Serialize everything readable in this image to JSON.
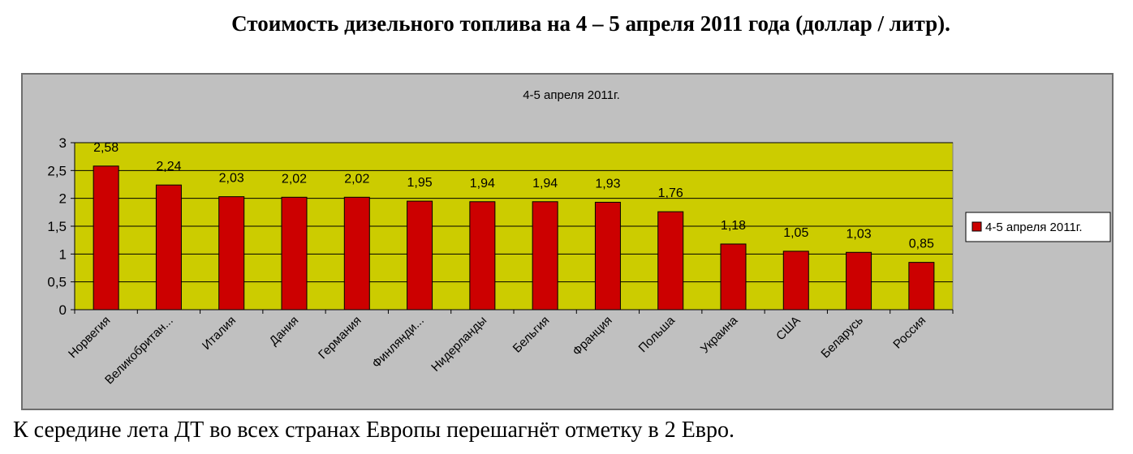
{
  "heading": "Стоимость дизельного топлива на 4 – 5 апреля 2011 года (доллар / литр).",
  "footer_text": "К середине лета ДТ во всех странах Европы перешагнёт  отметку в 2 Евро.",
  "chart_data": {
    "type": "bar",
    "title": "4-5 апреля 2011г.",
    "categories": [
      "Норвегия",
      "Великобритан...",
      "Италия",
      "Дания",
      "Германия",
      "Финлянди...",
      "Нидерланды",
      "Бельгия",
      "Франция",
      "Польша",
      "Украина",
      "США",
      "Беларусь",
      "Россия"
    ],
    "series": [
      {
        "name": "4-5 апреля 2011г.",
        "values": [
          2.58,
          2.24,
          2.03,
          2.02,
          2.02,
          1.95,
          1.94,
          1.94,
          1.93,
          1.76,
          1.18,
          1.05,
          1.03,
          0.85
        ]
      }
    ],
    "data_labels": [
      "2,58",
      "2,24",
      "2,03",
      "2,02",
      "2,02",
      "1,95",
      "1,94",
      "1,94",
      "1,93",
      "1,76",
      "1,18",
      "1,05",
      "1,03",
      "0,85"
    ],
    "y_ticks": [
      "0",
      "0,5",
      "1",
      "1,5",
      "2",
      "2,5",
      "3"
    ],
    "ylim": [
      0,
      3
    ],
    "grid": true,
    "legend": "right",
    "colors": {
      "bar": "#cc0000",
      "plot_background": "#cccc00",
      "chart_background": "#c0c0c0"
    }
  }
}
